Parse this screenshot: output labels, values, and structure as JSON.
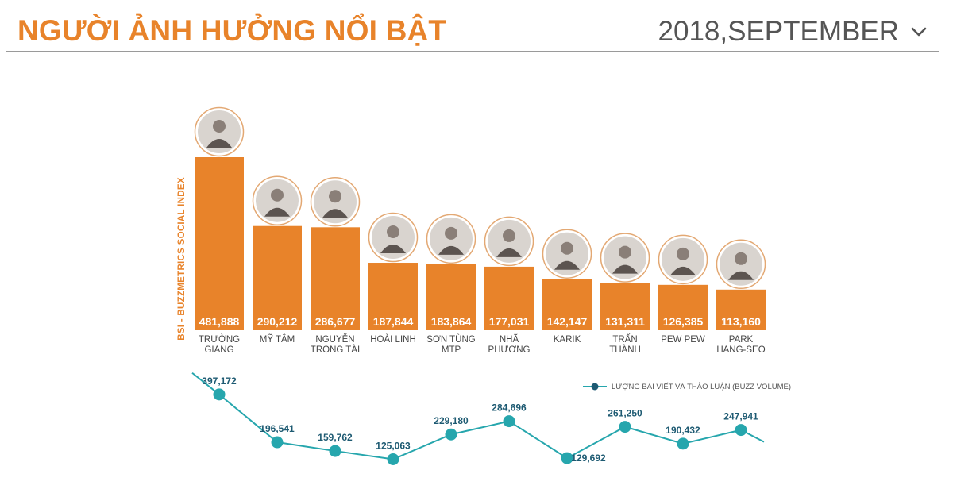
{
  "header": {
    "title": "NGƯỜI ẢNH HƯỞNG NỔI BẬT",
    "period": "2018,SEPTEMBER",
    "dropdown_icon": "chevron-down-icon"
  },
  "colors": {
    "accent": "#e8832a",
    "bar": "#e8832a",
    "line": "#26a6ad",
    "point_label": "#1d5a72",
    "divider": "#9a9a9a"
  },
  "chart_data": [
    {
      "type": "bar",
      "ylabel": "BSI - BUZZMETRICS SOCIAL INDEX",
      "categories": [
        [
          "TRƯỜNG",
          "GIANG"
        ],
        [
          "MỸ TÂM"
        ],
        [
          "NGUYỄN",
          "TRỌNG TÀI"
        ],
        [
          "HOÀI LINH"
        ],
        [
          "SƠN TÙNG",
          "MTP"
        ],
        [
          "NHÃ",
          "PHƯƠNG"
        ],
        [
          "KARIK"
        ],
        [
          "TRẤN",
          "THÀNH"
        ],
        [
          "PEW PEW"
        ],
        [
          "PARK",
          "HANG-SEO"
        ]
      ],
      "values": [
        481888,
        290212,
        286677,
        187844,
        183864,
        177031,
        142147,
        131311,
        126385,
        113160
      ],
      "value_labels": [
        "481,888",
        "290,212",
        "286,677",
        "187,844",
        "183,864",
        "177,031",
        "142,147",
        "131,311",
        "126,385",
        "113,160"
      ],
      "avatar_icon": "person-avatar-icon"
    },
    {
      "type": "line",
      "legend": "LƯỢNG BÀI VIẾT VÀ THẢO LUẬN (BUZZ VOLUME)",
      "legend_position": "top-right",
      "values": [
        397172,
        196541,
        159762,
        125063,
        229180,
        284696,
        129692,
        261250,
        190432,
        247941
      ],
      "value_labels": [
        "397,172",
        "196,541",
        "159,762",
        "125,063",
        "229,180",
        "284,696",
        "129,692",
        "261,250",
        "190,432",
        "247,941"
      ]
    }
  ]
}
